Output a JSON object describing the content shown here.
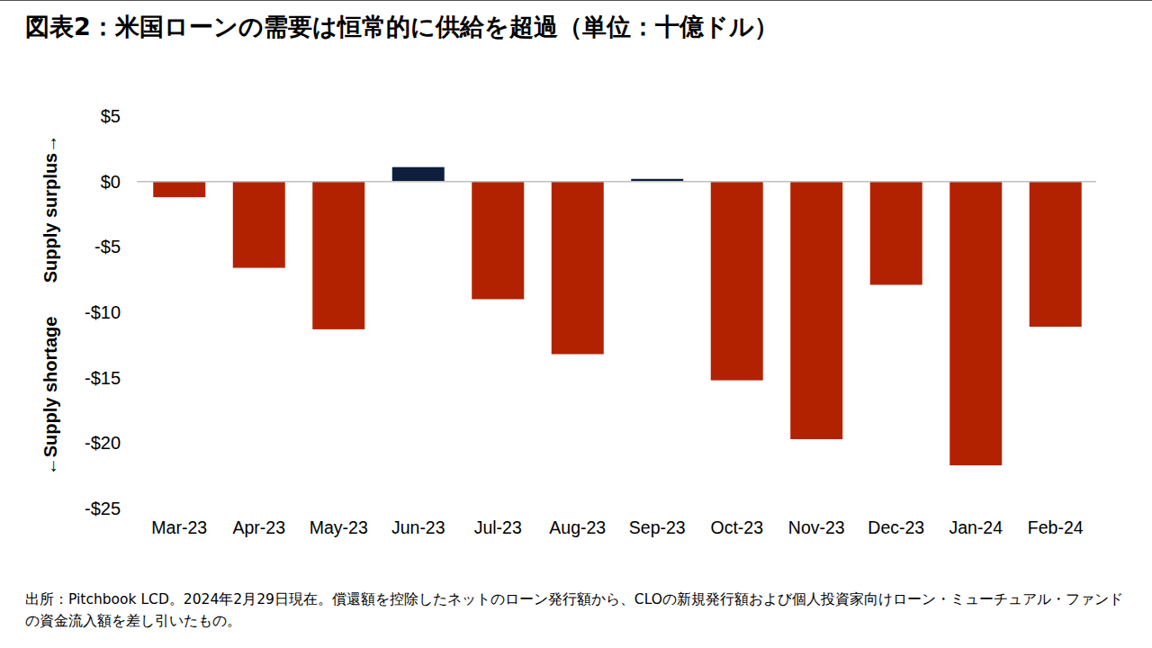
{
  "chart_data": {
    "type": "bar",
    "title": "図表2：米国ローンの需要は恒常的に供給を超過（単位：十億ドル）",
    "annotations": [
      "Supply surplus→",
      "←Supply shortage"
    ],
    "source": "出所：Pitchbook LCD。2024年2月29日現在。償還額を控除したネットのローン発行額から、CLOの新規発行額および個人投資家向けローン・ミューチュアル・ファンドの資金流入額を差し引いたもの。",
    "categories": [
      "Mar-23",
      "Apr-23",
      "May-23",
      "Jun-23",
      "Jul-23",
      "Aug-23",
      "Sep-23",
      "Oct-23",
      "Nov-23",
      "Dec-23",
      "Jan-24",
      "Feb-24"
    ],
    "values": [
      -1.2,
      -6.6,
      -11.3,
      1.1,
      -9.0,
      -13.2,
      0.2,
      -15.2,
      -19.7,
      -7.9,
      -21.7,
      -11.1
    ],
    "colors": [
      "#b22200",
      "#b22200",
      "#b22200",
      "#0d1f3c",
      "#b22200",
      "#b22200",
      "#0d1f3c",
      "#b22200",
      "#b22200",
      "#b22200",
      "#b22200",
      "#b22200"
    ],
    "ylim": [
      -25,
      5
    ],
    "yticks": [
      {
        "value": 5,
        "label": "$5"
      },
      {
        "value": 0,
        "label": "$0"
      },
      {
        "value": -5,
        "label": "-$5"
      },
      {
        "value": -10,
        "label": "-$10"
      },
      {
        "value": -15,
        "label": "-$15"
      },
      {
        "value": -20,
        "label": "-$20"
      },
      {
        "value": -25,
        "label": "-$25"
      }
    ],
    "grid": false
  }
}
